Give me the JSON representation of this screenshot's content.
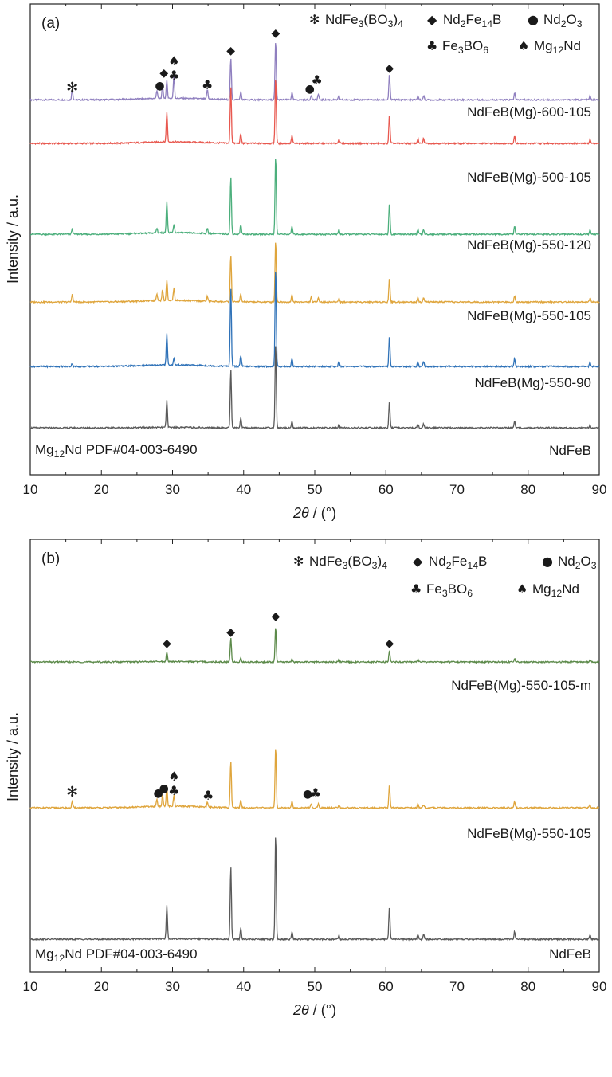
{
  "chart_data": [
    {
      "panel_label": "(a)",
      "type": "line",
      "xlabel_italic": "2θ",
      "xlabel_rest": " / (°)",
      "ylabel": "Intensity / a.u.",
      "xlim": [
        10,
        90
      ],
      "xticks": [
        "10",
        "20",
        "30",
        "40",
        "50",
        "60",
        "70",
        "80",
        "90"
      ],
      "legend": [
        {
          "symbol": "✻",
          "parts": [
            "NdFe",
            "3",
            "(BO",
            "3",
            ")",
            "4"
          ]
        },
        {
          "symbol": "◆",
          "parts": [
            "Nd",
            "2",
            "Fe",
            "14",
            "B"
          ]
        },
        {
          "symbol": "●",
          "parts": [
            "Nd",
            "2",
            "O",
            "3"
          ]
        },
        {
          "symbol": "♣",
          "parts": [
            "Fe",
            "3",
            "BO",
            "6"
          ]
        },
        {
          "symbol": "♠",
          "parts": [
            "Mg",
            "12",
            "Nd"
          ]
        }
      ],
      "reference_note": {
        "parts": [
          "Mg",
          "12",
          "Nd PDF#04-003-6490"
        ]
      },
      "series": [
        {
          "name": "NdFeB(Mg)-600-105",
          "color": "#8f7fbf",
          "baseline": 0.8,
          "peaks": [
            [
              15.9,
              13
            ],
            [
              27.8,
              10
            ],
            [
              28.6,
              16
            ],
            [
              29.2,
              22
            ],
            [
              30.2,
              28
            ],
            [
              34.9,
              12
            ],
            [
              38.2,
              52
            ],
            [
              39.6,
              10
            ],
            [
              44.5,
              75
            ],
            [
              46.8,
              9
            ],
            [
              49.5,
              6
            ],
            [
              50.5,
              7
            ],
            [
              53.4,
              5
            ],
            [
              60.5,
              32
            ],
            [
              64.5,
              5
            ],
            [
              65.3,
              5
            ],
            [
              78.1,
              9
            ],
            [
              88.7,
              5
            ]
          ]
        },
        {
          "name": "NdFeB(Mg)-500-105",
          "color": "#e8584f",
          "baseline": 2.0,
          "peaks": [
            [
              29.2,
              38
            ],
            [
              38.2,
              72
            ],
            [
              39.6,
              12
            ],
            [
              44.5,
              84
            ],
            [
              46.8,
              10
            ],
            [
              53.4,
              6
            ],
            [
              60.5,
              36
            ],
            [
              64.5,
              6
            ],
            [
              65.3,
              6
            ],
            [
              78.1,
              10
            ],
            [
              88.7,
              5
            ]
          ]
        },
        {
          "name": "NdFeB(Mg)-550-120",
          "color": "#4caf7c",
          "baseline": 1.0,
          "peaks": [
            [
              15.9,
              7
            ],
            [
              27.8,
              6
            ],
            [
              29.2,
              40
            ],
            [
              30.2,
              10
            ],
            [
              34.9,
              6
            ],
            [
              38.2,
              72
            ],
            [
              39.6,
              12
            ],
            [
              44.5,
              100
            ],
            [
              46.8,
              10
            ],
            [
              53.4,
              6
            ],
            [
              60.5,
              40
            ],
            [
              64.5,
              6
            ],
            [
              65.3,
              6
            ],
            [
              78.1,
              10
            ],
            [
              88.7,
              5
            ]
          ]
        },
        {
          "name": "NdFeB(Mg)-550-105",
          "color": "#dfa53c",
          "baseline": 1.0,
          "peaks": [
            [
              15.9,
              10
            ],
            [
              27.8,
              9
            ],
            [
              28.6,
              14
            ],
            [
              29.2,
              26
            ],
            [
              30.2,
              16
            ],
            [
              34.9,
              6
            ],
            [
              38.2,
              60
            ],
            [
              39.6,
              10
            ],
            [
              44.5,
              78
            ],
            [
              46.8,
              9
            ],
            [
              49.5,
              6
            ],
            [
              50.5,
              6
            ],
            [
              53.4,
              5
            ],
            [
              60.5,
              30
            ],
            [
              64.5,
              6
            ],
            [
              65.3,
              5
            ],
            [
              78.1,
              8
            ],
            [
              88.7,
              5
            ]
          ]
        },
        {
          "name": "NdFeB(Mg)-550-90",
          "color": "#2f72b8",
          "baseline": 1.0,
          "peaks": [
            [
              15.9,
              4
            ],
            [
              29.2,
              40
            ],
            [
              30.2,
              8
            ],
            [
              38.2,
              100
            ],
            [
              39.6,
              14
            ],
            [
              44.5,
              126
            ],
            [
              46.8,
              10
            ],
            [
              53.4,
              6
            ],
            [
              60.5,
              38
            ],
            [
              64.5,
              6
            ],
            [
              65.3,
              6
            ],
            [
              78.1,
              10
            ],
            [
              88.7,
              5
            ]
          ]
        },
        {
          "name": "NdFeB",
          "color": "#5a5a5a",
          "baseline": 0.0,
          "peaks": [
            [
              29.2,
              34
            ],
            [
              38.2,
              74
            ],
            [
              39.6,
              12
            ],
            [
              44.5,
              108
            ],
            [
              46.8,
              8
            ],
            [
              53.4,
              4
            ],
            [
              60.5,
              34
            ],
            [
              64.5,
              5
            ],
            [
              65.3,
              5
            ],
            [
              78.1,
              8
            ],
            [
              88.7,
              4
            ]
          ]
        }
      ]
    },
    {
      "panel_label": "(b)",
      "type": "line",
      "xlabel_italic": "2θ",
      "xlabel_rest": " / (°)",
      "ylabel": "Intensity / a.u.",
      "xlim": [
        10,
        90
      ],
      "xticks": [
        "10",
        "20",
        "30",
        "40",
        "50",
        "60",
        "70",
        "80",
        "90"
      ],
      "legend": [
        {
          "symbol": "✻",
          "parts": [
            "NdFe",
            "3",
            "(BO",
            "3",
            ")",
            "4"
          ]
        },
        {
          "symbol": "◆",
          "parts": [
            "Nd",
            "2",
            "Fe",
            "14",
            "B"
          ]
        },
        {
          "symbol": "●",
          "parts": [
            "Nd",
            "2",
            "O",
            "3"
          ]
        },
        {
          "symbol": "♣",
          "parts": [
            "Fe",
            "3",
            "BO",
            "6"
          ]
        },
        {
          "symbol": "♠",
          "parts": [
            "Mg",
            "12",
            "Nd"
          ]
        }
      ],
      "reference_note": {
        "parts": [
          "Mg",
          "12",
          "Nd PDF#04-003-6490"
        ]
      },
      "series": [
        {
          "name": "NdFeB(Mg)-550-105-m",
          "color": "#5c8a4a",
          "baseline": 0.0,
          "peaks": [
            [
              29.2,
              12
            ],
            [
              38.2,
              30
            ],
            [
              39.6,
              5
            ],
            [
              44.5,
              44
            ],
            [
              46.8,
              4
            ],
            [
              53.4,
              3
            ],
            [
              60.5,
              14
            ],
            [
              64.5,
              3
            ],
            [
              78.1,
              4
            ],
            [
              88.7,
              3
            ]
          ]
        },
        {
          "name": "NdFeB(Mg)-550-105",
          "color": "#dfa53c",
          "baseline": 1.0,
          "peaks": [
            [
              15.9,
              8
            ],
            [
              27.8,
              9
            ],
            [
              28.6,
              14
            ],
            [
              29.2,
              26
            ],
            [
              30.2,
              14
            ],
            [
              34.9,
              6
            ],
            [
              38.2,
              60
            ],
            [
              39.6,
              10
            ],
            [
              44.5,
              78
            ],
            [
              46.8,
              9
            ],
            [
              49.5,
              5
            ],
            [
              50.5,
              5
            ],
            [
              53.4,
              4
            ],
            [
              60.5,
              30
            ],
            [
              64.5,
              5
            ],
            [
              65.3,
              4
            ],
            [
              78.1,
              8
            ],
            [
              88.7,
              4
            ]
          ]
        },
        {
          "name": "NdFeB",
          "color": "#5a5a5a",
          "baseline": 0.0,
          "peaks": [
            [
              29.2,
              42
            ],
            [
              38.2,
              92
            ],
            [
              39.6,
              14
            ],
            [
              44.5,
              134
            ],
            [
              46.8,
              10
            ],
            [
              53.4,
              5
            ],
            [
              60.5,
              42
            ],
            [
              64.5,
              6
            ],
            [
              65.3,
              6
            ],
            [
              78.1,
              10
            ],
            [
              88.7,
              5
            ]
          ]
        }
      ]
    }
  ]
}
